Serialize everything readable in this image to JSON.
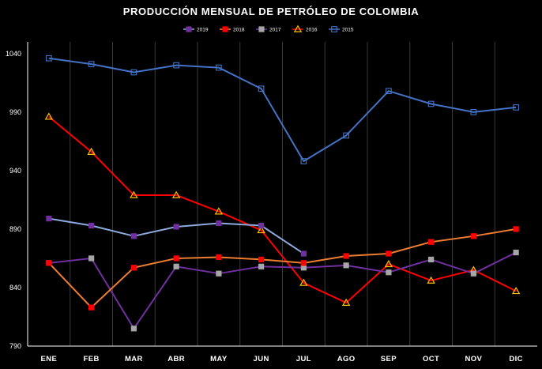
{
  "chart_data": {
    "type": "line",
    "title": "PRODUCCIÓN MENSUAL DE PETRÓLEO DE COLOMBIA",
    "xlabel": "",
    "ylabel": "",
    "categories": [
      "ENE",
      "FEB",
      "MAR",
      "ABR",
      "MAY",
      "JUN",
      "JUL",
      "AGO",
      "SEP",
      "OCT",
      "NOV",
      "DIC"
    ],
    "ylim": [
      790,
      1050
    ],
    "yticks": [
      790,
      840,
      890,
      940,
      990,
      1040
    ],
    "grid": "vertical",
    "legend_position": "top",
    "series": [
      {
        "name": "2019",
        "color": "#7030a0",
        "line_color": "#8ea9db",
        "marker": "square-filled",
        "values": [
          899,
          893,
          884,
          892,
          895,
          893,
          869,
          null,
          null,
          null,
          null,
          null
        ]
      },
      {
        "name": "2018",
        "color": "#ff0000",
        "line_color": "#ed7d31",
        "marker": "square-filled",
        "values": [
          861,
          823,
          857,
          865,
          866,
          864,
          861,
          867,
          869,
          879,
          884,
          890
        ]
      },
      {
        "name": "2017",
        "color": "#a6a6a6",
        "line_color": "#7030a0",
        "marker": "square-filled",
        "values": [
          861,
          865,
          805,
          858,
          852,
          858,
          857,
          859,
          853,
          864,
          852,
          870
        ]
      },
      {
        "name": "2016",
        "color": "#ffc000",
        "line_color": "#ff0000",
        "marker": "triangle-open",
        "values": [
          986,
          956,
          919,
          919,
          905,
          889,
          844,
          827,
          860,
          846,
          855,
          837
        ]
      },
      {
        "name": "2015",
        "color": "#4472c4",
        "line_color": "#4472c4",
        "marker": "square-open",
        "values": [
          1036,
          1031,
          1024,
          1030,
          1028,
          1010,
          948,
          970,
          1008,
          997,
          990,
          994
        ]
      }
    ]
  }
}
